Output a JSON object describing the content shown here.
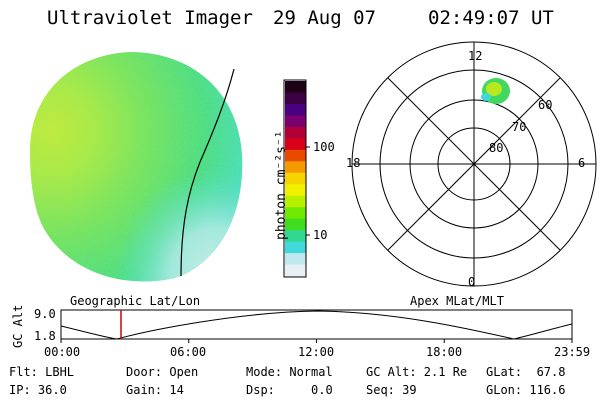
{
  "header": {
    "instrument": "Ultraviolet Imager",
    "date": "29 Aug 07",
    "time": "02:49:07 UT"
  },
  "colorbar": {
    "unit_label": "photon cm⁻²s⁻¹",
    "ticks": [
      "100",
      "10"
    ],
    "colors": [
      "#1c0014",
      "#3a0042",
      "#4a0080",
      "#7a0070",
      "#b0003a",
      "#d8001a",
      "#e84a00",
      "#f59a00",
      "#f5d400",
      "#f0f000",
      "#b8f000",
      "#70e800",
      "#40dc20",
      "#30d890",
      "#40d8d8",
      "#bfe8f0",
      "#e8f0f6"
    ]
  },
  "polar_grid": {
    "mlt_labels": [
      "12",
      "18",
      "6",
      "0"
    ],
    "mlat_labels": [
      "60",
      "70",
      "80"
    ]
  },
  "orbit_plot": {
    "left_title": "Geographic Lat/Lon",
    "right_title": "Apex MLat/MLT",
    "y_axis_label": "GC Alt",
    "y_ticks": [
      "9.0",
      "1.8"
    ],
    "x_ticks": [
      "00:00",
      "06:00",
      "12:00",
      "18:00",
      "23:59"
    ],
    "marker_time_hours": 2.82,
    "marker_color": "#d00000"
  },
  "status": {
    "filter": "Flt: LBHL",
    "ip": "IP: 36.0",
    "door": "Door: Open",
    "gain": "Gain: 14",
    "mode": "Mode: Normal",
    "dsp": "Dsp:     0.0",
    "gc_alt": "GC Alt: 2.1 Re",
    "seq": "Seq: 39",
    "glat": "GLat:  67.8",
    "glon": "GLon: 116.6"
  }
}
